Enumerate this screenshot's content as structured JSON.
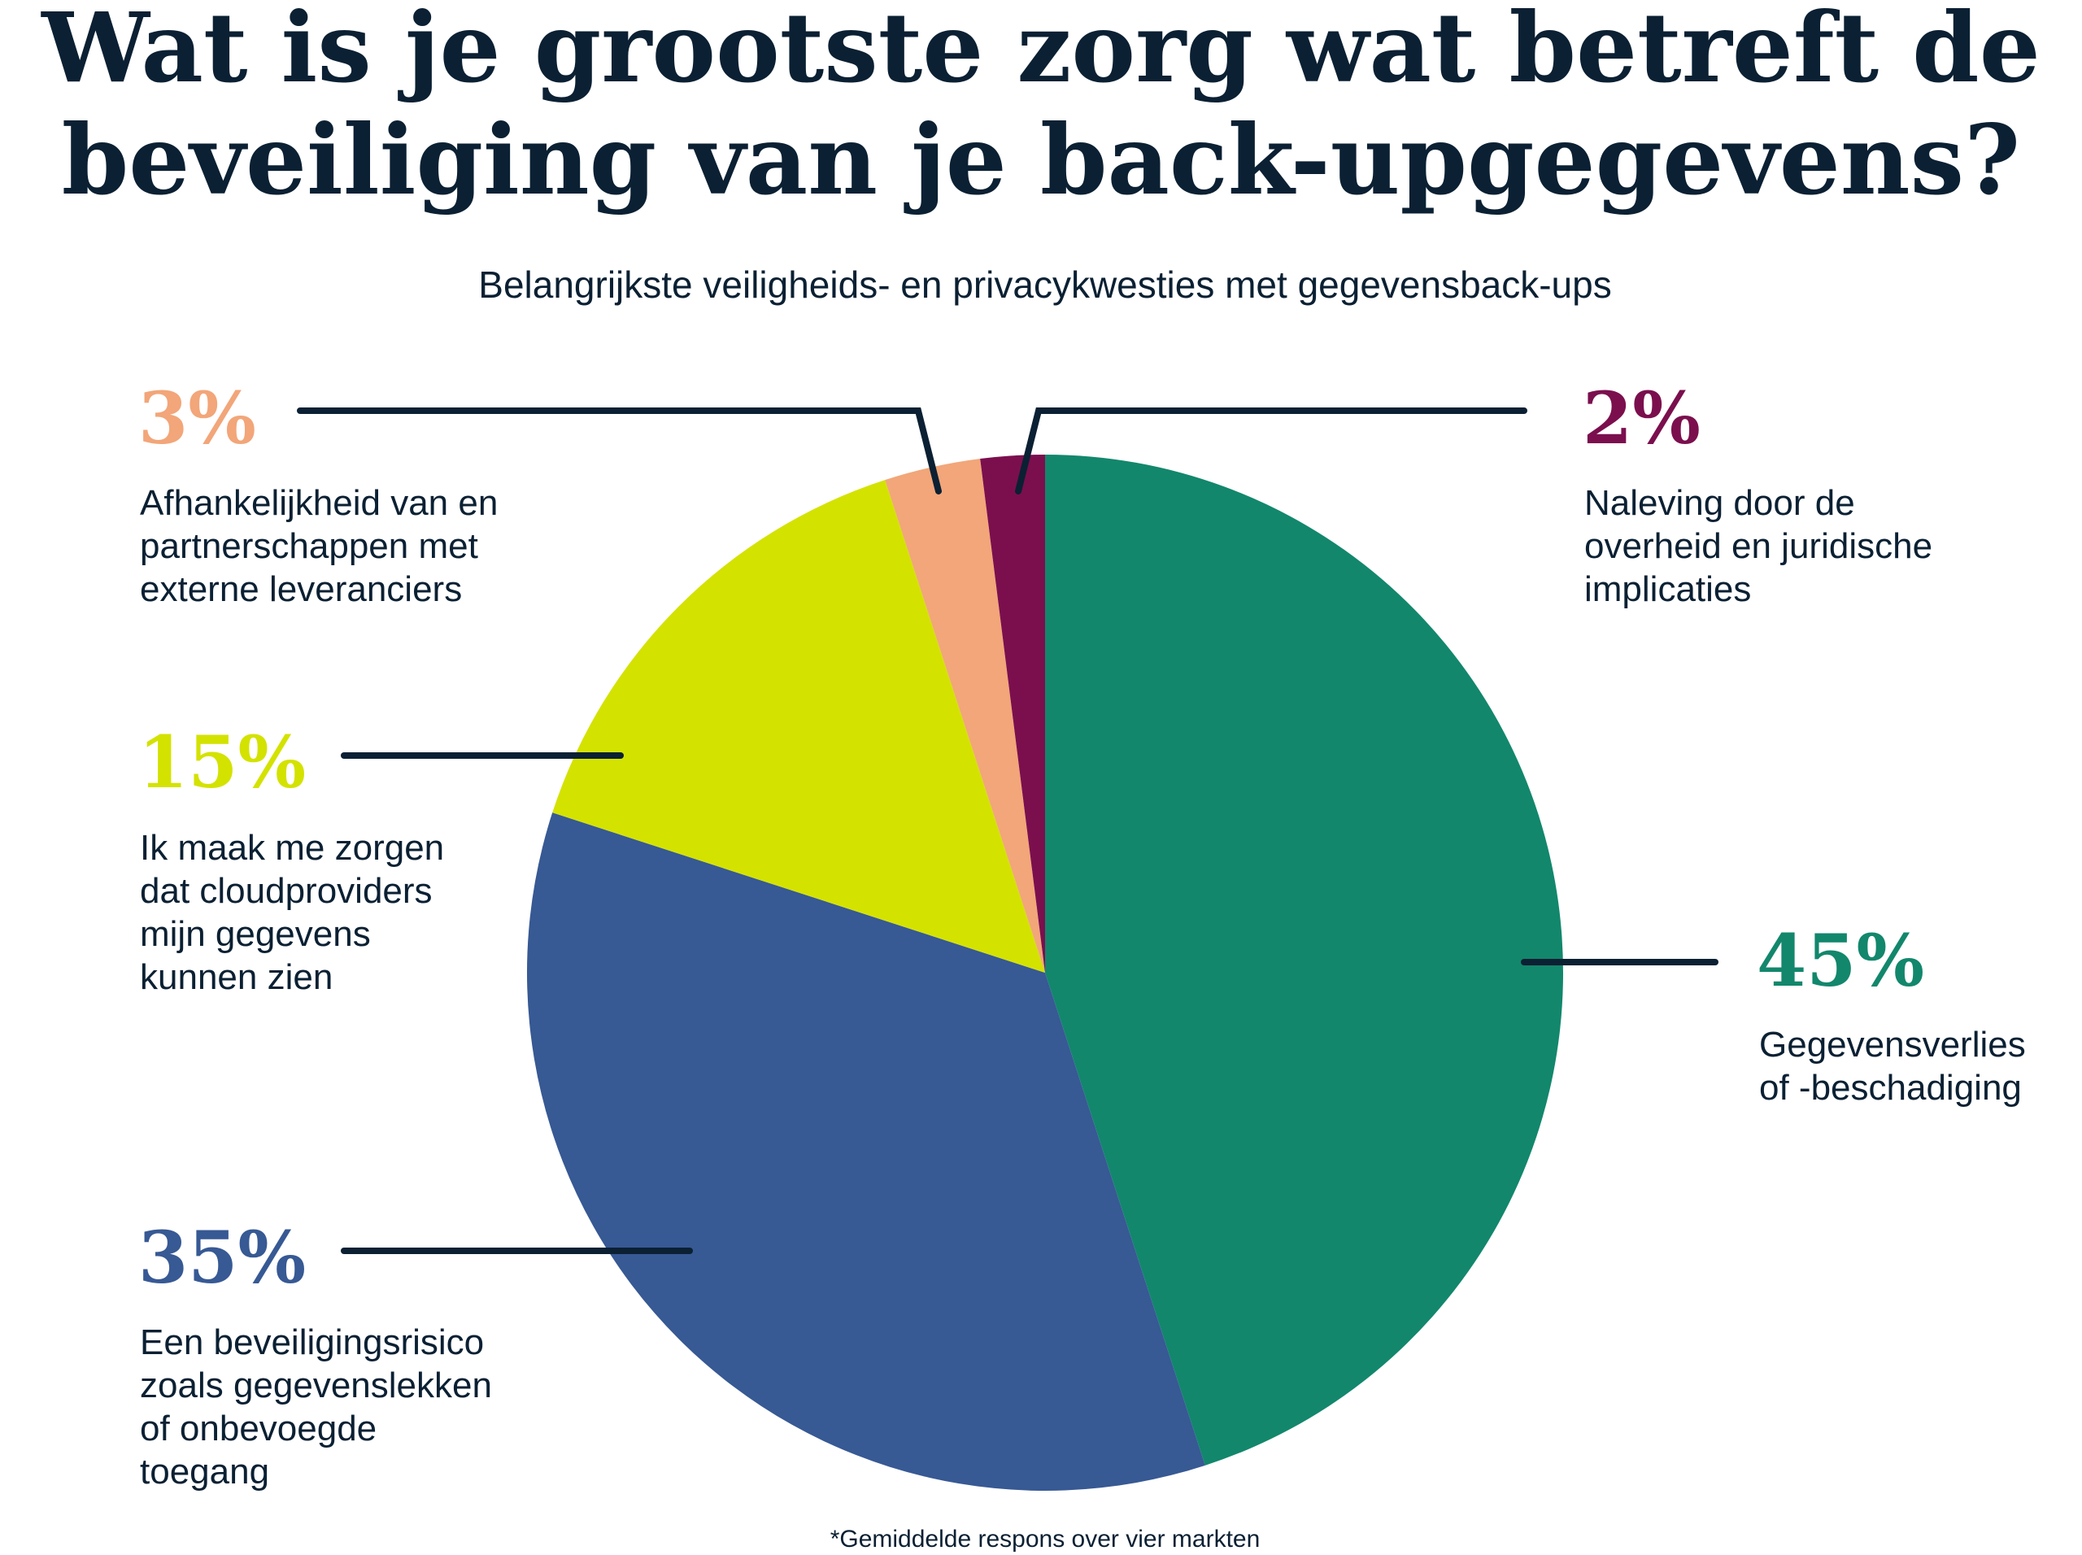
{
  "chart_data": {
    "type": "pie",
    "title": "Wat is je grootste zorg wat betreft de beveiliging van je back-upgegevens?",
    "title_lines": [
      "Wat is je grootste zorg wat betreft de",
      "beveiliging van je back-upgegevens?"
    ],
    "subtitle": "Belangrijkste veiligheids- en privacykwesties met gegevensback-ups",
    "footnote": "*Gemiddelde respons over vier markten",
    "start_angle": "top, clockwise",
    "slices": [
      {
        "value": 45,
        "display": "45%",
        "color": "#12876c",
        "label_lines": [
          "Gegevensverlies",
          "of -beschadiging"
        ]
      },
      {
        "value": 35,
        "display": "35%",
        "color": "#375994",
        "label_lines": [
          "Een beveiligingsrisico",
          "zoals gegevenslekken",
          "of onbevoegde",
          "toegang"
        ]
      },
      {
        "value": 15,
        "display": "15%",
        "color": "#d4e200",
        "label_lines": [
          "Ik maak me zorgen",
          "dat cloudproviders",
          "mijn gegevens",
          "kunnen zien"
        ]
      },
      {
        "value": 3,
        "display": "3%",
        "color": "#f2a679",
        "label_lines": [
          "Afhankelijkheid van en",
          "partnerschappen met",
          "externe leveranciers"
        ]
      },
      {
        "value": 2,
        "display": "2%",
        "color": "#7b0f4e",
        "label_lines": [
          "Naleving door de",
          "overheid en juridische",
          "implicaties"
        ]
      }
    ]
  }
}
